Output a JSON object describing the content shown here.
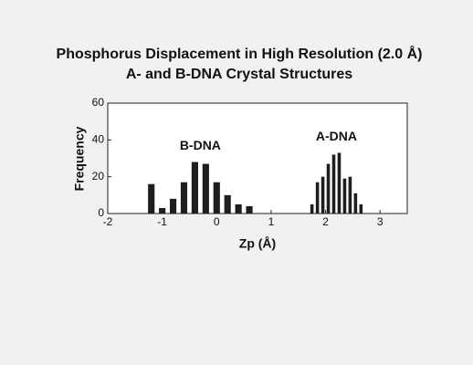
{
  "chart_data": {
    "type": "histogram",
    "title": [
      "Phosphorus Displacement in High Resolution (2.0 Å)",
      "A- and B-DNA Crystal Structures"
    ],
    "x_label": "Zp (Å)",
    "y_label": "Frequency",
    "xlim": [
      -2,
      3.5
    ],
    "xticks": [
      -2,
      -1,
      0,
      1,
      2,
      3
    ],
    "ylim": [
      0,
      60
    ],
    "yticks": [
      0,
      20,
      40,
      60
    ],
    "series": [
      {
        "name": "B-DNA",
        "color": "#1e1e1e",
        "bins": [
          -1.3,
          -1.1,
          -0.9,
          -0.7,
          -0.5,
          -0.3,
          -0.1,
          0.1,
          0.3,
          0.5,
          0.7
        ],
        "values": [
          16,
          3,
          8,
          17,
          28,
          27,
          17,
          10,
          5,
          4
        ]
      },
      {
        "name": "A-DNA",
        "color": "#1e1e1e",
        "bins": [
          1.7,
          1.8,
          1.9,
          2.0,
          2.1,
          2.2,
          2.3,
          2.4,
          2.5,
          2.6,
          2.7
        ],
        "values": [
          5,
          17,
          20,
          27,
          32,
          33,
          19,
          20,
          11,
          5
        ]
      }
    ]
  }
}
